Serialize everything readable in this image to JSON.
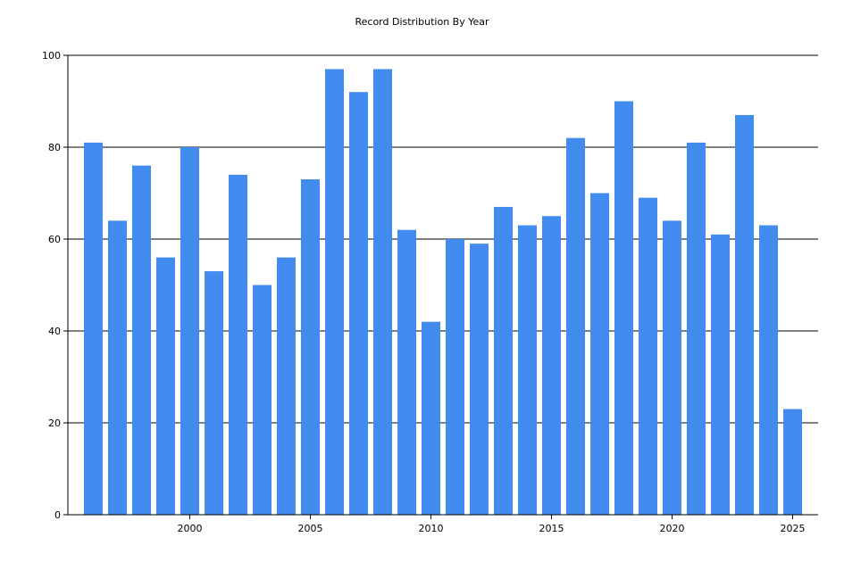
{
  "chart_data": {
    "type": "bar",
    "title": "Record Distribution By Year",
    "xlabel": "",
    "ylabel": "",
    "categories": [
      1996,
      1997,
      1998,
      1999,
      2000,
      2001,
      2002,
      2003,
      2004,
      2005,
      2006,
      2007,
      2008,
      2009,
      2010,
      2011,
      2012,
      2013,
      2014,
      2015,
      2016,
      2017,
      2018,
      2019,
      2020,
      2021,
      2022,
      2023,
      2024,
      2025
    ],
    "values": [
      81,
      64,
      76,
      56,
      80,
      53,
      74,
      50,
      56,
      73,
      97,
      92,
      97,
      62,
      42,
      60,
      59,
      67,
      63,
      65,
      82,
      70,
      90,
      69,
      64,
      81,
      61,
      87,
      63,
      23
    ],
    "ylim": [
      0,
      100
    ],
    "yticks": [
      0,
      20,
      40,
      60,
      80,
      100
    ],
    "xticks": [
      2000,
      2005,
      2010,
      2015,
      2020,
      2025
    ],
    "grid": "horizontal",
    "bar_color": "#428CF0",
    "legend": "none"
  }
}
